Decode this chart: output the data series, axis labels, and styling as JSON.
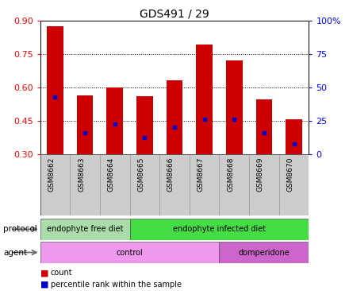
{
  "title": "GDS491 / 29",
  "samples": [
    "GSM8662",
    "GSM8663",
    "GSM8664",
    "GSM8665",
    "GSM8666",
    "GSM8667",
    "GSM8668",
    "GSM8669",
    "GSM8670"
  ],
  "bar_tops": [
    0.875,
    0.565,
    0.6,
    0.56,
    0.63,
    0.79,
    0.72,
    0.545,
    0.455
  ],
  "bar_bottoms": [
    0.3,
    0.3,
    0.3,
    0.3,
    0.3,
    0.3,
    0.3,
    0.3,
    0.3
  ],
  "blue_dot_vals": [
    0.555,
    0.395,
    0.435,
    0.375,
    0.42,
    0.455,
    0.455,
    0.395,
    0.345
  ],
  "ylim_left": [
    0.3,
    0.9
  ],
  "ylim_right": [
    0,
    100
  ],
  "yticks_left": [
    0.3,
    0.45,
    0.6,
    0.75,
    0.9
  ],
  "yticks_right": [
    0,
    25,
    50,
    75,
    100
  ],
  "bar_color": "#cc0000",
  "dot_color": "#0000cc",
  "bar_width": 0.55,
  "protocol_groups": [
    {
      "label": "endophyte free diet",
      "start": 0,
      "end": 3,
      "color": "#aaddaa"
    },
    {
      "label": "endophyte infected diet",
      "start": 3,
      "end": 9,
      "color": "#44dd44"
    }
  ],
  "agent_groups": [
    {
      "label": "control",
      "start": 0,
      "end": 6,
      "color": "#ee99ee"
    },
    {
      "label": "domperidone",
      "start": 6,
      "end": 9,
      "color": "#cc66cc"
    }
  ],
  "legend_count_color": "#cc0000",
  "legend_pct_color": "#0000cc",
  "bg_color": "#ffffff",
  "tick_box_color": "#cccccc",
  "protocol_label": "protocol",
  "agent_label": "agent"
}
